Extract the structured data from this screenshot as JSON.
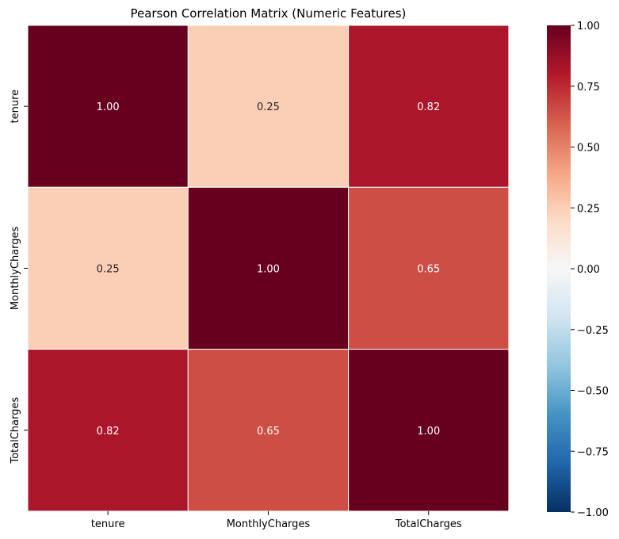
{
  "chart_data": {
    "type": "heatmap",
    "title": "Pearson Correlation Matrix (Numeric Features)",
    "x_categories": [
      "tenure",
      "MonthlyCharges",
      "TotalCharges"
    ],
    "y_categories": [
      "tenure",
      "MonthlyCharges",
      "TotalCharges"
    ],
    "values": [
      [
        1.0,
        0.25,
        0.82
      ],
      [
        0.25,
        1.0,
        0.65
      ],
      [
        0.82,
        0.65,
        1.0
      ]
    ],
    "value_labels": [
      [
        "1.00",
        "0.25",
        "0.82"
      ],
      [
        "0.25",
        "1.00",
        "0.65"
      ],
      [
        "0.82",
        "0.65",
        "1.00"
      ]
    ],
    "colorscale": "RdBu_r",
    "vmin": -1.0,
    "vmax": 1.0,
    "colorbar_ticks": [
      {
        "value": 1.0,
        "label": "1.00"
      },
      {
        "value": 0.75,
        "label": "0.75"
      },
      {
        "value": 0.5,
        "label": "0.50"
      },
      {
        "value": 0.25,
        "label": "0.25"
      },
      {
        "value": 0.0,
        "label": "0.00"
      },
      {
        "value": -0.25,
        "label": "−0.25"
      },
      {
        "value": -0.5,
        "label": "−0.50"
      },
      {
        "value": -0.75,
        "label": "−0.75"
      },
      {
        "value": -1.0,
        "label": "−1.00"
      }
    ]
  }
}
